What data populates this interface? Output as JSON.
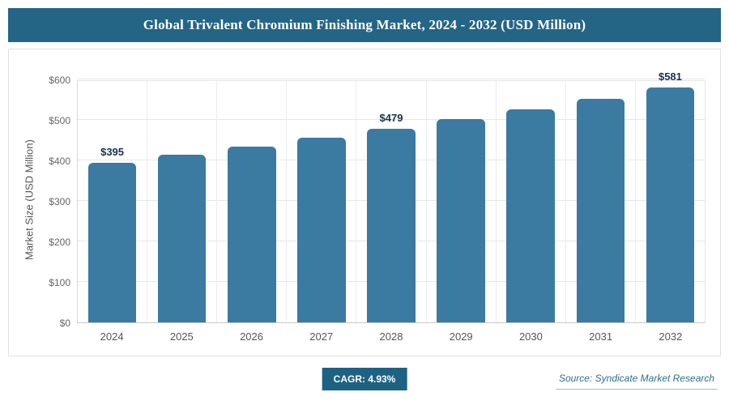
{
  "header": {
    "title": "Global Trivalent Chromium Finishing Market, 2024 - 2032 (USD Million)"
  },
  "chart_data": {
    "type": "bar",
    "title": "Global Trivalent Chromium Finishing Market, 2024 - 2032 (USD Million)",
    "categories": [
      "2024",
      "2025",
      "2026",
      "2027",
      "2028",
      "2029",
      "2030",
      "2031",
      "2032"
    ],
    "values": [
      395,
      414,
      434,
      456,
      479,
      502,
      527,
      553,
      581
    ],
    "bar_labels": [
      "$395",
      "",
      "",
      "",
      "$479",
      "",
      "",
      "",
      "$581"
    ],
    "xlabel": "",
    "ylabel": "Market Size (USD Million)",
    "ylim": [
      0,
      600
    ],
    "ytick_step": 100,
    "yticks": [
      "$0",
      "$100",
      "$200",
      "$300",
      "$400",
      "$500",
      "$600"
    ],
    "bar_color": "#3b7aa1",
    "grid": true,
    "legend": "none"
  },
  "footer": {
    "cagr_label": "CAGR: 4.93%",
    "source": "Source: Syndicate Market Research"
  }
}
